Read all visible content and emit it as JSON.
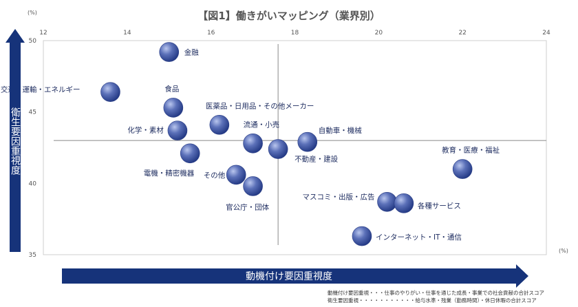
{
  "chart_data": {
    "type": "scatter",
    "title": "【図1】働きがいマッピング（業界別）",
    "xlabel": "動機付け要因重視度",
    "ylabel": "衛生要因重視度",
    "x_unit": "(%)",
    "y_unit": "(%)",
    "xlim": [
      12,
      24
    ],
    "ylim": [
      35,
      50
    ],
    "x_ticks": [
      12,
      14,
      16,
      18,
      20,
      22,
      24
    ],
    "y_ticks": [
      35,
      40,
      45,
      50
    ],
    "x_tick_labels": [
      "12",
      "14",
      "16",
      "18",
      "20",
      "22",
      "24"
    ],
    "y_tick_labels": [
      "35",
      "40",
      "45",
      "50"
    ],
    "reference_lines": {
      "x": 17.6,
      "y": 43
    },
    "colors": {
      "point": "#4a5fa8",
      "axis_arrow": "#16337a"
    },
    "points": [
      {
        "name": "金融",
        "x": 15.0,
        "y": 49.2
      },
      {
        "name": "交通・運輸・エネルギー",
        "x": 13.6,
        "y": 46.4
      },
      {
        "name": "食品",
        "x": 15.1,
        "y": 45.3
      },
      {
        "name": "医薬品・日用品・その他メーカー",
        "x": 16.2,
        "y": 44.1
      },
      {
        "name": "化学・素材",
        "x": 15.2,
        "y": 43.7
      },
      {
        "name": "流通・小売",
        "x": 17.0,
        "y": 42.8
      },
      {
        "name": "自動車・機械",
        "x": 18.3,
        "y": 42.9
      },
      {
        "name": "電機・精密機器",
        "x": 15.5,
        "y": 42.1
      },
      {
        "name": "不動産・建設",
        "x": 17.6,
        "y": 42.4
      },
      {
        "name": "教育・医療・福祉",
        "x": 22.0,
        "y": 41.0
      },
      {
        "name": "その他",
        "x": 16.6,
        "y": 40.6
      },
      {
        "name": "官公庁・団体",
        "x": 17.0,
        "y": 39.8
      },
      {
        "name": "マスコミ・出版・広告",
        "x": 20.2,
        "y": 38.7
      },
      {
        "name": "各種サービス",
        "x": 20.6,
        "y": 38.6
      },
      {
        "name": "インターネット・IT・通信",
        "x": 19.6,
        "y": 36.3
      }
    ],
    "notes": [
      "動機付け要因重視・・・仕事のやりがい・仕事を通じた成長・事業での社会貢献の合計スコア",
      "衛生要因重視・・・・・・・・・・・給与水準・残業（勤務時間）・休日休暇の合計スコア"
    ]
  }
}
